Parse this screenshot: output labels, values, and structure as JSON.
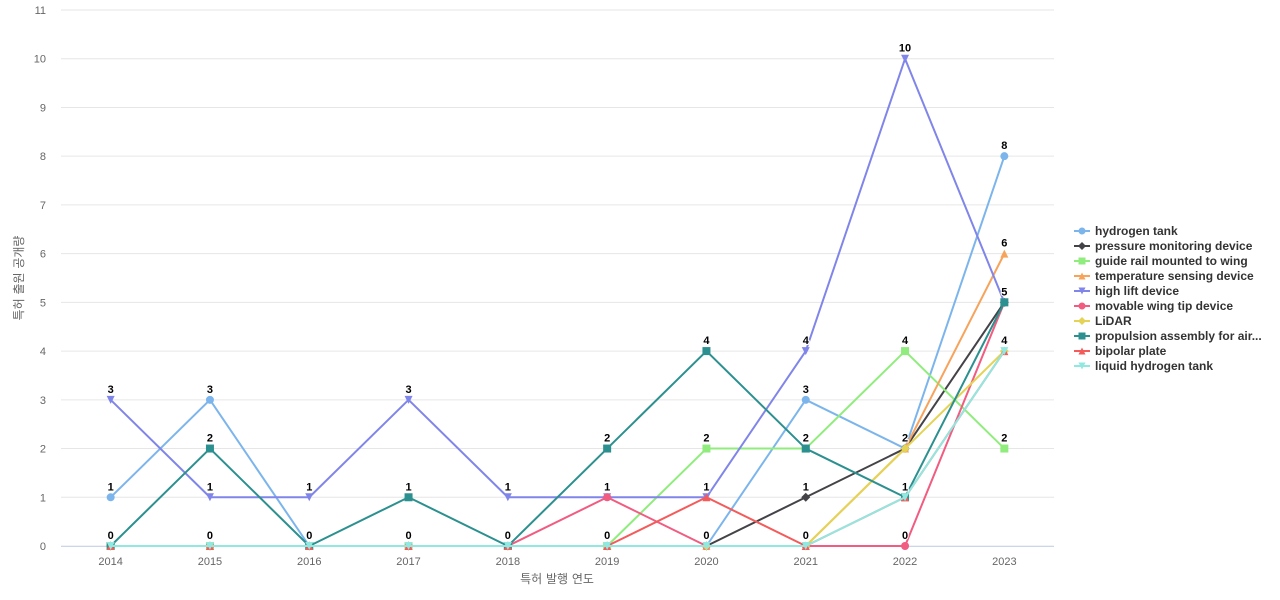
{
  "chart_data": {
    "type": "line",
    "xlabel": "특허 발행 연도",
    "ylabel": "특허 출원 공개량",
    "ylim": [
      0,
      11
    ],
    "yticks": [
      0,
      1,
      2,
      3,
      4,
      5,
      6,
      7,
      8,
      9,
      10,
      11
    ],
    "grid": true,
    "legend_position": "right",
    "categories": [
      "2014",
      "2015",
      "2016",
      "2017",
      "2018",
      "2019",
      "2020",
      "2021",
      "2022",
      "2023"
    ],
    "series": [
      {
        "name": "hydrogen tank",
        "color": "#7cb5ec",
        "marker": "circle",
        "values": [
          1,
          3,
          0,
          0,
          0,
          0,
          0,
          3,
          2,
          8
        ]
      },
      {
        "name": "pressure monitoring device",
        "color": "#434348",
        "marker": "diamond",
        "values": [
          0,
          0,
          0,
          0,
          0,
          0,
          0,
          1,
          2,
          5
        ]
      },
      {
        "name": "guide rail mounted to wing",
        "color": "#90ed7d",
        "marker": "square",
        "values": [
          0,
          0,
          0,
          0,
          0,
          0,
          2,
          2,
          4,
          2
        ]
      },
      {
        "name": "temperature sensing device",
        "color": "#f7a35c",
        "marker": "triangle",
        "values": [
          0,
          0,
          0,
          0,
          0,
          0,
          0,
          0,
          2,
          6
        ]
      },
      {
        "name": "high lift device",
        "color": "#8085e9",
        "marker": "triangle-down",
        "values": [
          3,
          1,
          1,
          3,
          1,
          1,
          1,
          4,
          10,
          5
        ]
      },
      {
        "name": "movable wing tip device",
        "color": "#f15c80",
        "marker": "circle",
        "values": [
          0,
          0,
          0,
          0,
          0,
          1,
          0,
          0,
          0,
          5
        ]
      },
      {
        "name": "LiDAR",
        "color": "#e4d354",
        "marker": "diamond",
        "values": [
          0,
          0,
          0,
          0,
          0,
          0,
          0,
          0,
          2,
          4
        ]
      },
      {
        "name": "propulsion assembly for air...",
        "color": "#2b908f",
        "marker": "square",
        "values": [
          0,
          2,
          0,
          1,
          0,
          2,
          4,
          2,
          1,
          5
        ]
      },
      {
        "name": "bipolar plate",
        "color": "#f45b5b",
        "marker": "triangle",
        "values": [
          0,
          0,
          0,
          0,
          0,
          0,
          1,
          0,
          1,
          4
        ]
      },
      {
        "name": "liquid hydrogen tank",
        "color": "#91e8e1",
        "marker": "triangle-down",
        "values": [
          0,
          0,
          0,
          0,
          0,
          0,
          0,
          0,
          1,
          4
        ]
      }
    ],
    "data_labels": [
      {
        "x": "2014",
        "text": "3",
        "value": 3
      },
      {
        "x": "2014",
        "text": "1",
        "value": 1
      },
      {
        "x": "2014",
        "text": "0",
        "value": 0
      },
      {
        "x": "2015",
        "text": "3",
        "value": 3
      },
      {
        "x": "2015",
        "text": "2",
        "value": 2
      },
      {
        "x": "2015",
        "text": "1",
        "value": 1
      },
      {
        "x": "2015",
        "text": "0",
        "value": 0
      },
      {
        "x": "2016",
        "text": "1",
        "value": 1
      },
      {
        "x": "2016",
        "text": "0",
        "value": 0
      },
      {
        "x": "2017",
        "text": "3",
        "value": 3
      },
      {
        "x": "2017",
        "text": "1",
        "value": 1
      },
      {
        "x": "2017",
        "text": "0",
        "value": 0
      },
      {
        "x": "2018",
        "text": "1",
        "value": 1
      },
      {
        "x": "2018",
        "text": "0",
        "value": 0
      },
      {
        "x": "2019",
        "text": "2",
        "value": 2
      },
      {
        "x": "2019",
        "text": "1",
        "value": 1
      },
      {
        "x": "2019",
        "text": "0",
        "value": 0
      },
      {
        "x": "2020",
        "text": "4",
        "value": 4
      },
      {
        "x": "2020",
        "text": "2",
        "value": 2
      },
      {
        "x": "2020",
        "text": "1",
        "value": 1
      },
      {
        "x": "2020",
        "text": "0",
        "value": 0
      },
      {
        "x": "2021",
        "text": "4",
        "value": 4
      },
      {
        "x": "2021",
        "text": "3",
        "value": 3
      },
      {
        "x": "2021",
        "text": "2",
        "value": 2
      },
      {
        "x": "2021",
        "text": "1",
        "value": 1
      },
      {
        "x": "2021",
        "text": "0",
        "value": 0
      },
      {
        "x": "2022",
        "text": "10",
        "value": 10
      },
      {
        "x": "2022",
        "text": "4",
        "value": 4
      },
      {
        "x": "2022",
        "text": "2",
        "value": 2
      },
      {
        "x": "2022",
        "text": "1",
        "value": 1
      },
      {
        "x": "2022",
        "text": "0",
        "value": 0
      },
      {
        "x": "2023",
        "text": "8",
        "value": 8
      },
      {
        "x": "2023",
        "text": "6",
        "value": 6
      },
      {
        "x": "2023",
        "text": "5",
        "value": 5
      },
      {
        "x": "2023",
        "text": "4",
        "value": 4
      },
      {
        "x": "2023",
        "text": "2",
        "value": 2
      }
    ]
  }
}
